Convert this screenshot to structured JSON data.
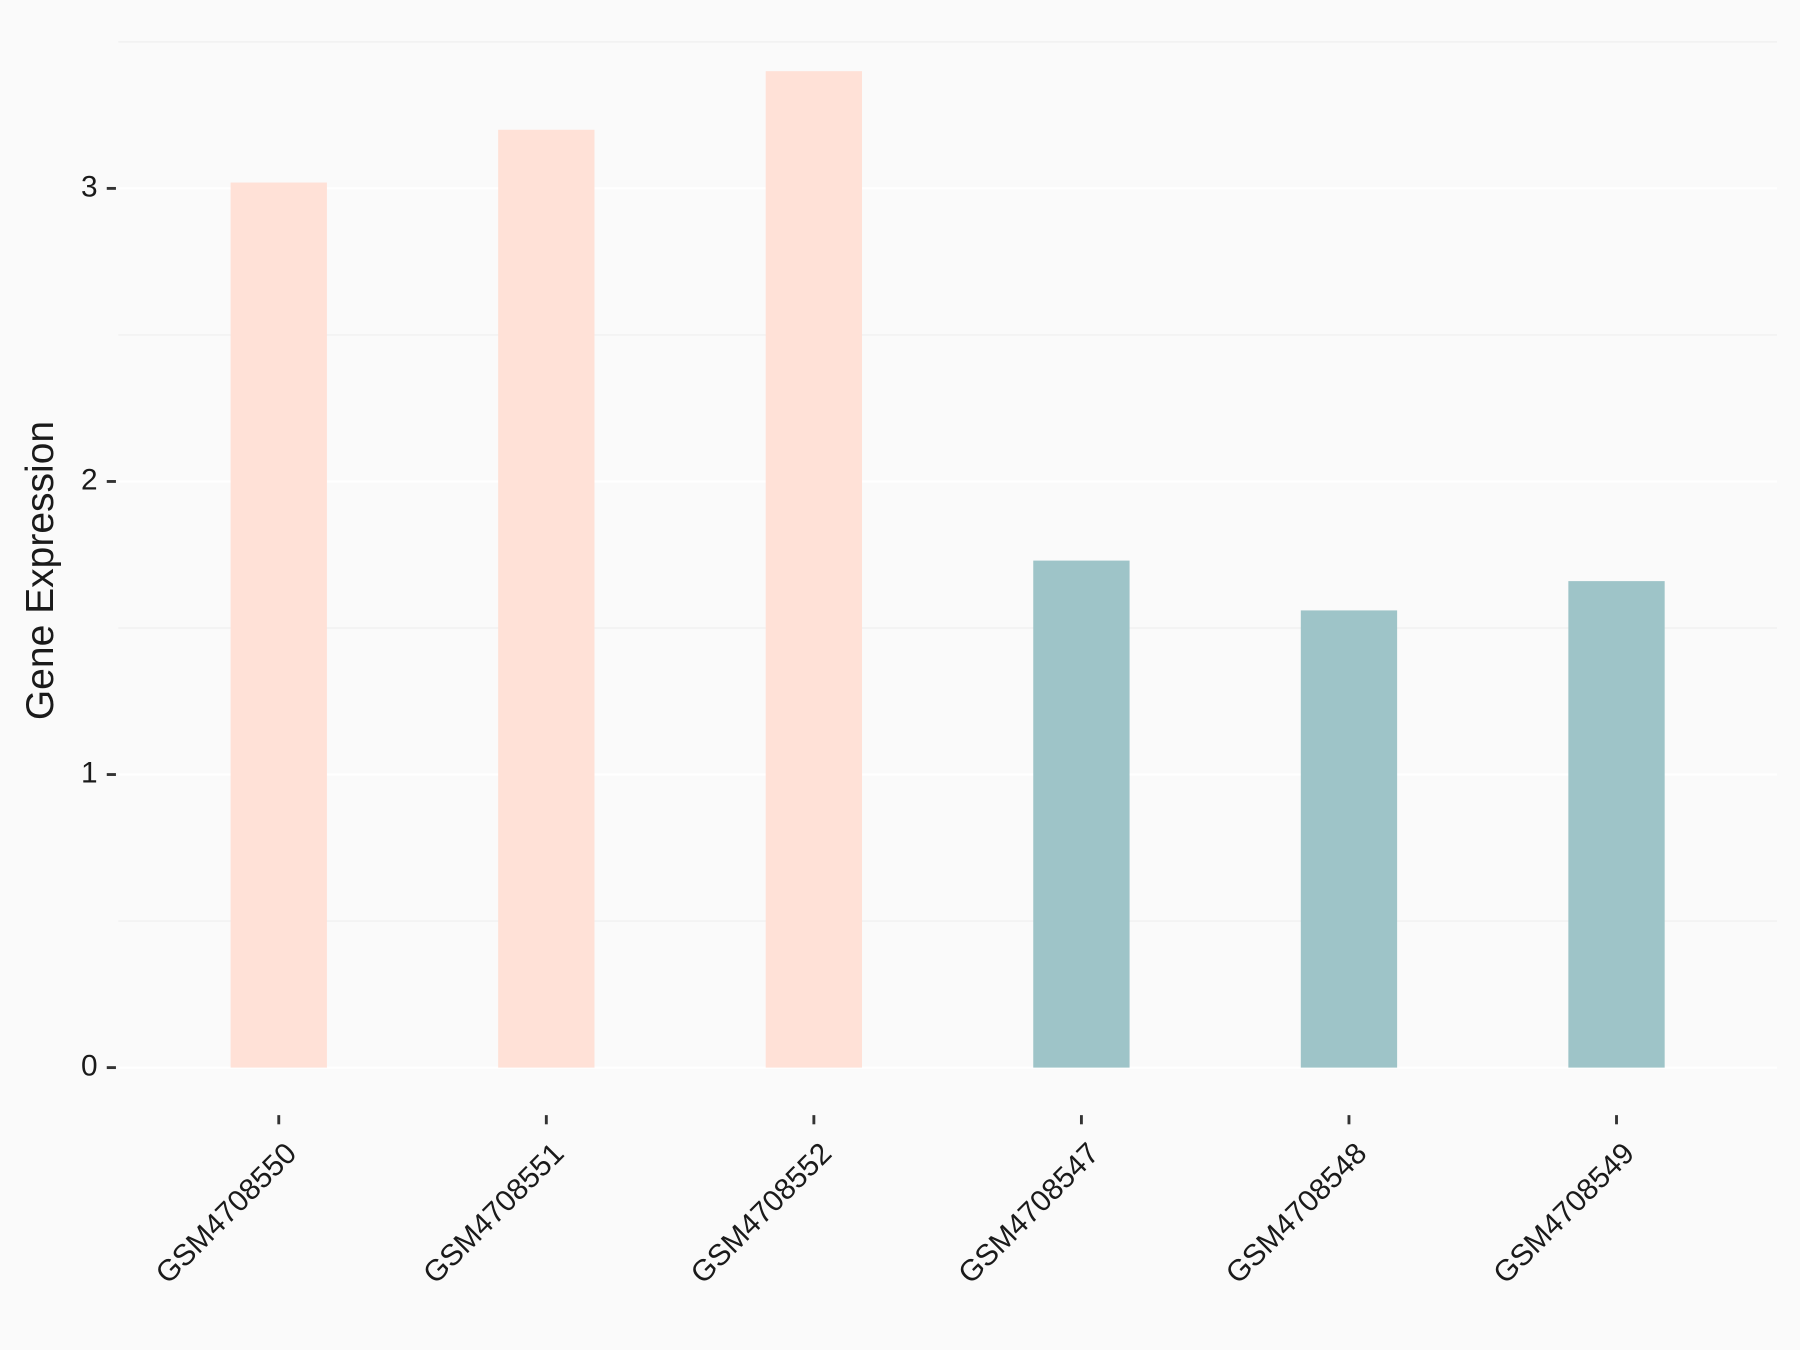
{
  "chart_data": {
    "type": "bar",
    "y_label": "Gene Expression",
    "categories": [
      "GSM4708550",
      "GSM4708551",
      "GSM4708552",
      "GSM4708547",
      "GSM4708548",
      "GSM4708549"
    ],
    "values": [
      3.02,
      3.2,
      3.4,
      1.73,
      1.56,
      1.66
    ],
    "colors": [
      "#ffe1d7",
      "#ffe1d7",
      "#ffe1d7",
      "#9ec4c8",
      "#9ec4c8",
      "#9ec4c8"
    ],
    "ylim": [
      -0.17,
      3.57
    ],
    "yticks": [
      0,
      1,
      2,
      3
    ],
    "minor_yticks": [
      0.5,
      1.5,
      2.5,
      3.5
    ],
    "grid": true
  }
}
